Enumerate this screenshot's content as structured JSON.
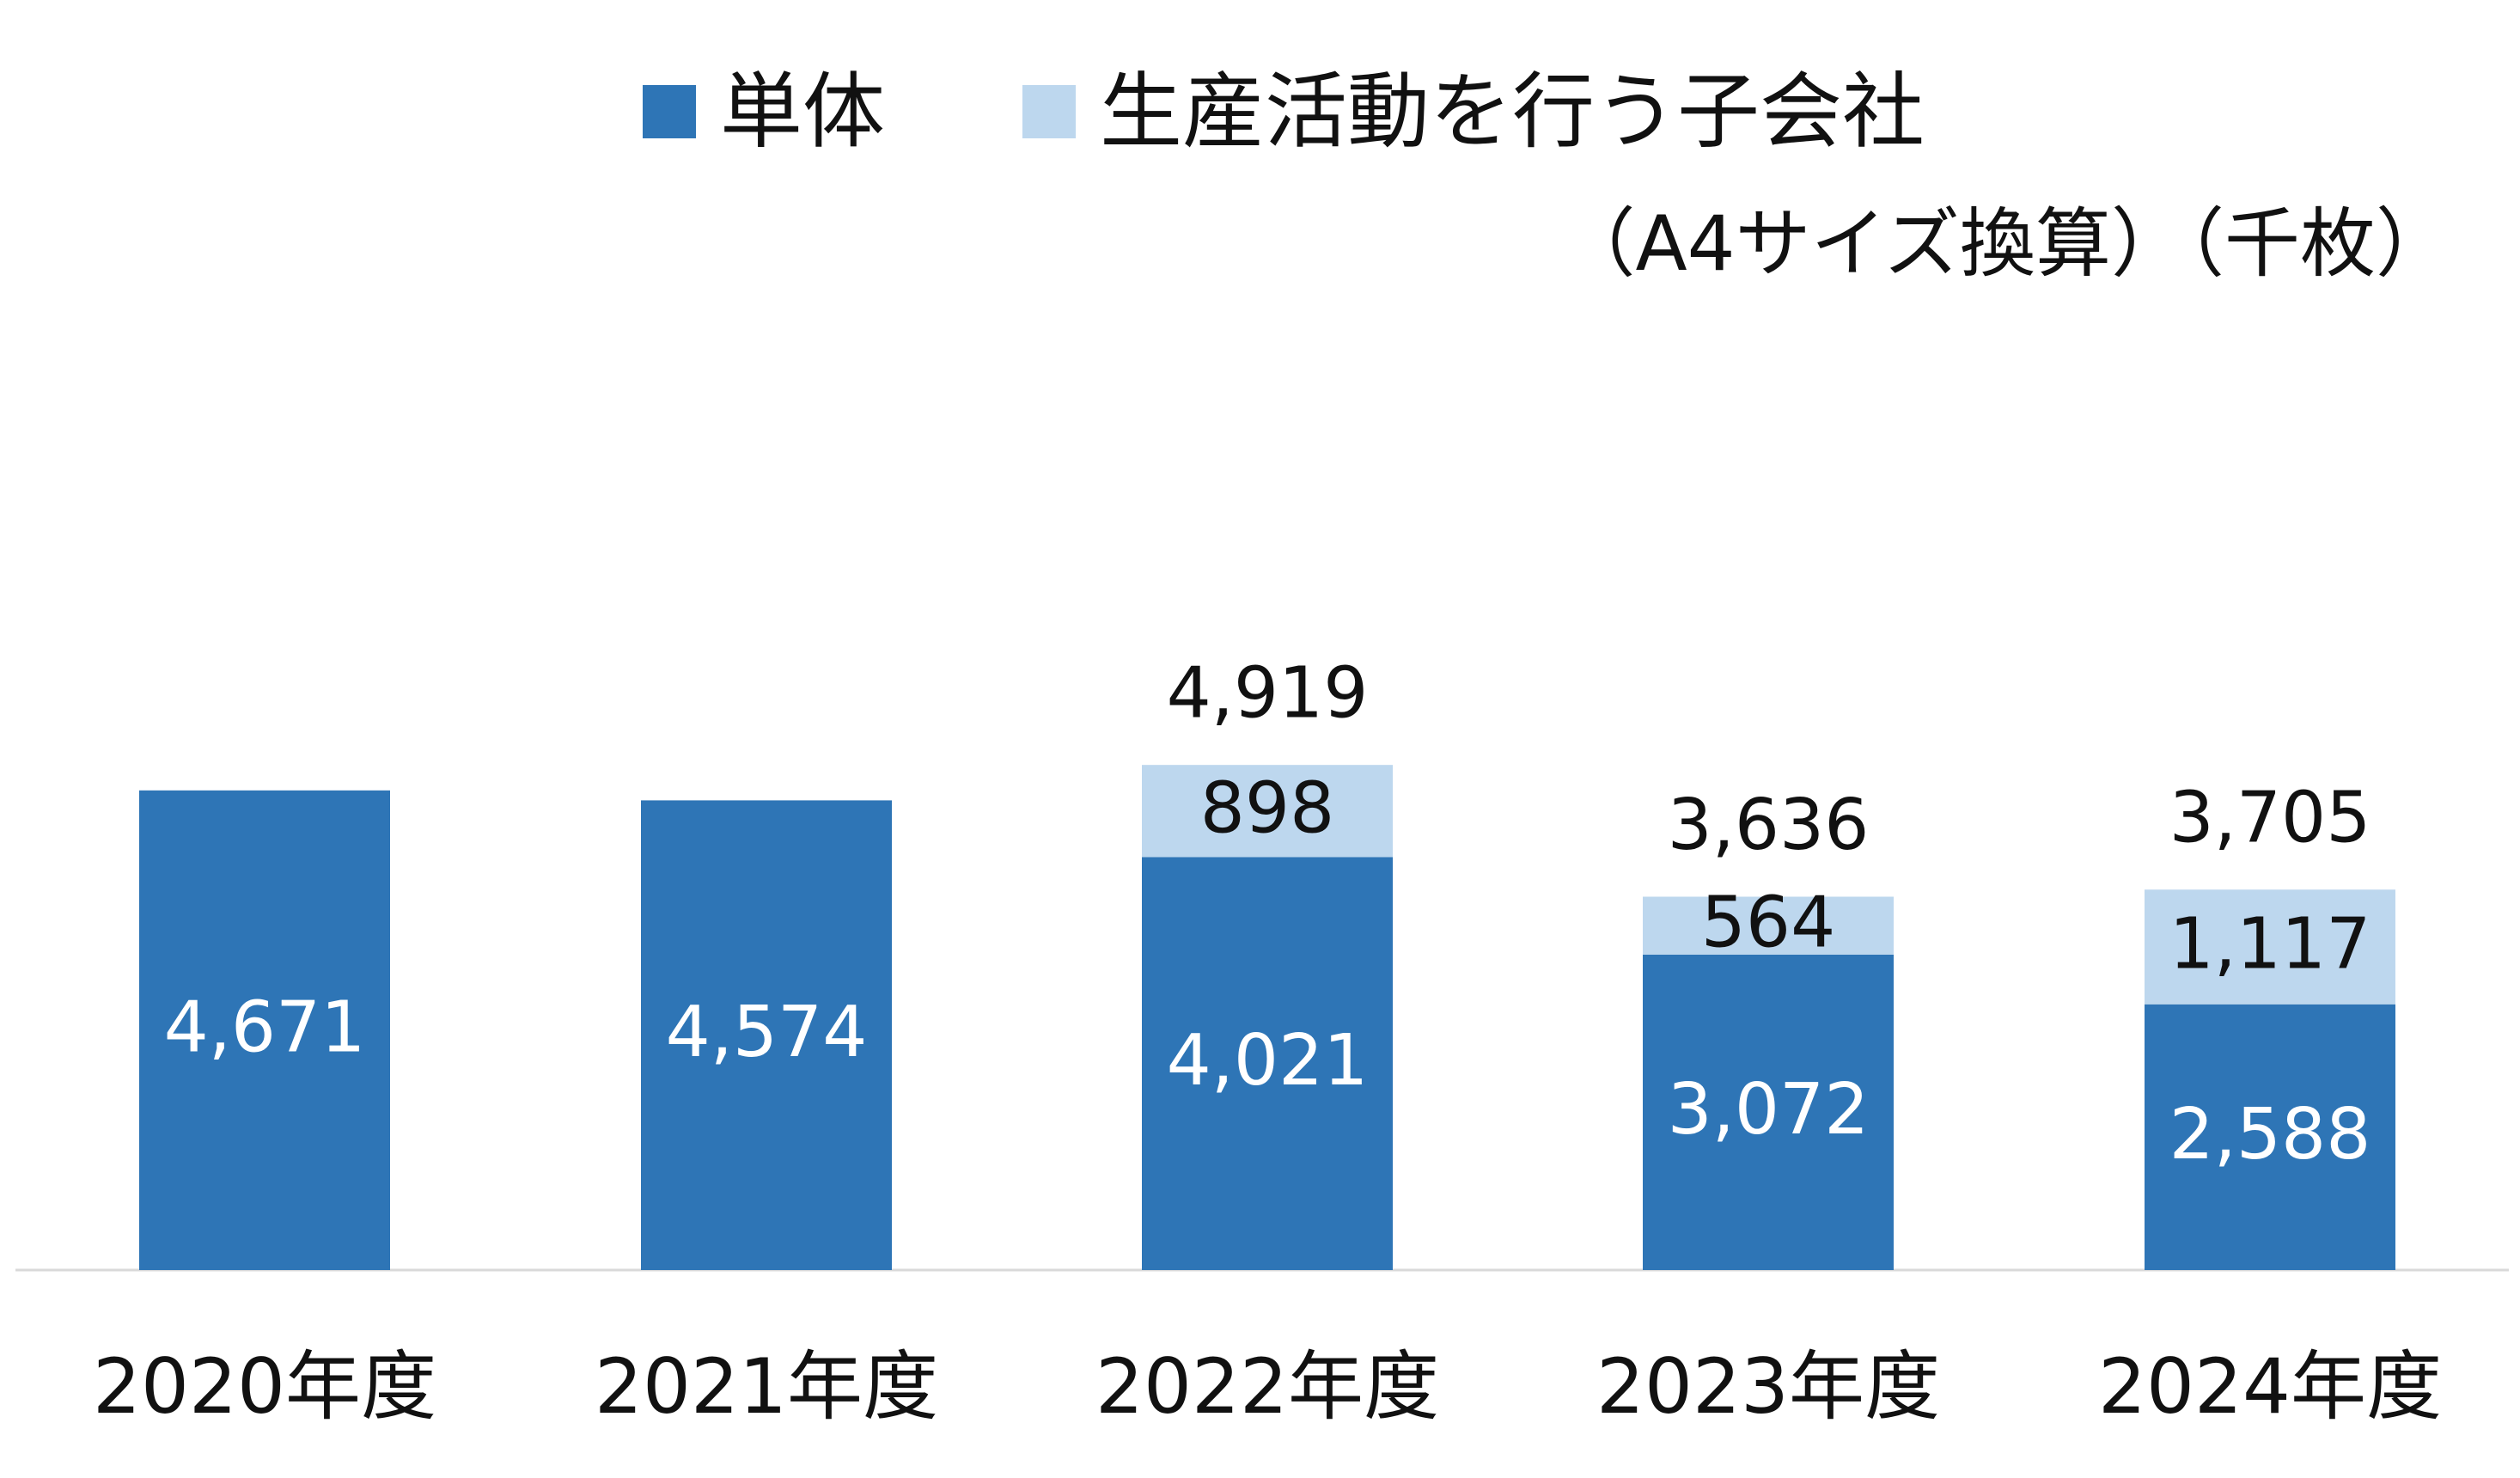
{
  "unit_note": "（A4サイズ換算）（千枚）",
  "legend": [
    {
      "label": "単体",
      "color": "#2e75b6"
    },
    {
      "label": "生産活動を行う子会社",
      "color": "#bdd7ee"
    }
  ],
  "chart_data": {
    "type": "bar",
    "stacked": true,
    "categories": [
      "2020年度",
      "2021年度",
      "2022年度",
      "2023年度",
      "2024年度"
    ],
    "series": [
      {
        "name": "単体",
        "color": "#2e75b6",
        "values": [
          4671,
          4574,
          4021,
          3072,
          2588
        ],
        "labels": [
          "4,671",
          "4,574",
          "4,021",
          "3,072",
          "2,588"
        ]
      },
      {
        "name": "生産活動を行う子会社",
        "color": "#bdd7ee",
        "values": [
          null,
          null,
          898,
          564,
          1117
        ],
        "labels": [
          "",
          "",
          "898",
          "564",
          "1,117"
        ]
      }
    ],
    "totals": [
      null,
      null,
      4919,
      3636,
      3705
    ],
    "total_labels": [
      "",
      "",
      "4,919",
      "3,636",
      "3,705"
    ],
    "title": "",
    "xlabel": "",
    "ylabel": "",
    "ylim": [
      0,
      7000
    ],
    "grid": false,
    "legend_position": "top"
  }
}
